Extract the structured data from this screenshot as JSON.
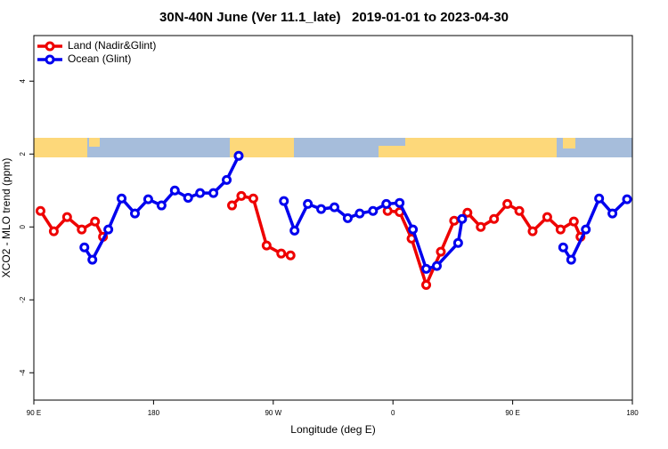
{
  "chart_data": {
    "type": "line",
    "title": "30N-40N June (Ver 11.1_late)   2019-01-01 to 2023-04-30",
    "xlabel": "Longitude (deg E)",
    "ylabel": "XCO2 - MLO trend (ppm)",
    "xlim": [
      90,
      540
    ],
    "ylim": [
      -4.75,
      5.25
    ],
    "xticks": [
      {
        "value": 90,
        "label": "90 E"
      },
      180,
      {
        "value": 270,
        "label": "90 W"
      },
      {
        "value": 360,
        "label": "0"
      },
      {
        "value": 450,
        "label": "90 E"
      },
      {
        "value": 540,
        "label": "180"
      }
    ],
    "yticks": [
      -4,
      -2,
      0,
      2,
      4
    ],
    "legend": "topleft",
    "series": [
      {
        "name": "Land (Nadir&Glint)",
        "color": "#ee0000",
        "x": [
          95,
          105,
          115,
          126,
          136,
          142,
          190,
          239,
          246,
          255,
          265,
          276,
          283,
          320,
          356,
          365,
          374,
          385,
          396,
          406,
          416,
          426,
          436,
          446,
          455,
          465,
          476,
          486,
          496,
          501
        ],
        "values": [
          0.44,
          -0.12,
          0.27,
          -0.07,
          0.15,
          -0.27,
          null,
          0.59,
          0.85,
          0.78,
          -0.51,
          -0.73,
          -0.78,
          null,
          0.44,
          0.41,
          -0.32,
          -1.59,
          -0.68,
          0.17,
          0.39,
          0,
          0.22,
          0.63,
          0.44,
          -0.12,
          0.27,
          -0.07,
          0.15,
          -0.27
        ]
      },
      {
        "name": "Ocean (Glint)",
        "color": "#0000ee",
        "x": [
          128,
          134,
          146,
          156,
          166,
          176,
          186,
          196,
          206,
          215,
          225,
          235,
          244,
          260,
          278,
          286,
          296,
          306,
          316,
          326,
          335,
          345,
          355,
          365,
          375,
          385,
          393,
          409,
          412,
          450,
          488,
          494,
          505,
          515,
          525,
          536
        ],
        "values": [
          -0.56,
          -0.9,
          -0.07,
          0.78,
          0.37,
          0.76,
          0.59,
          1,
          0.8,
          0.93,
          0.93,
          1.29,
          1.95,
          null,
          0.71,
          -0.1,
          0.63,
          0.49,
          0.54,
          0.24,
          0.37,
          0.44,
          0.63,
          0.66,
          -0.07,
          -1.15,
          -1.07,
          -0.44,
          0.22,
          null,
          -0.56,
          -0.9,
          -0.07,
          0.78,
          0.37,
          0.76
        ]
      }
    ]
  }
}
